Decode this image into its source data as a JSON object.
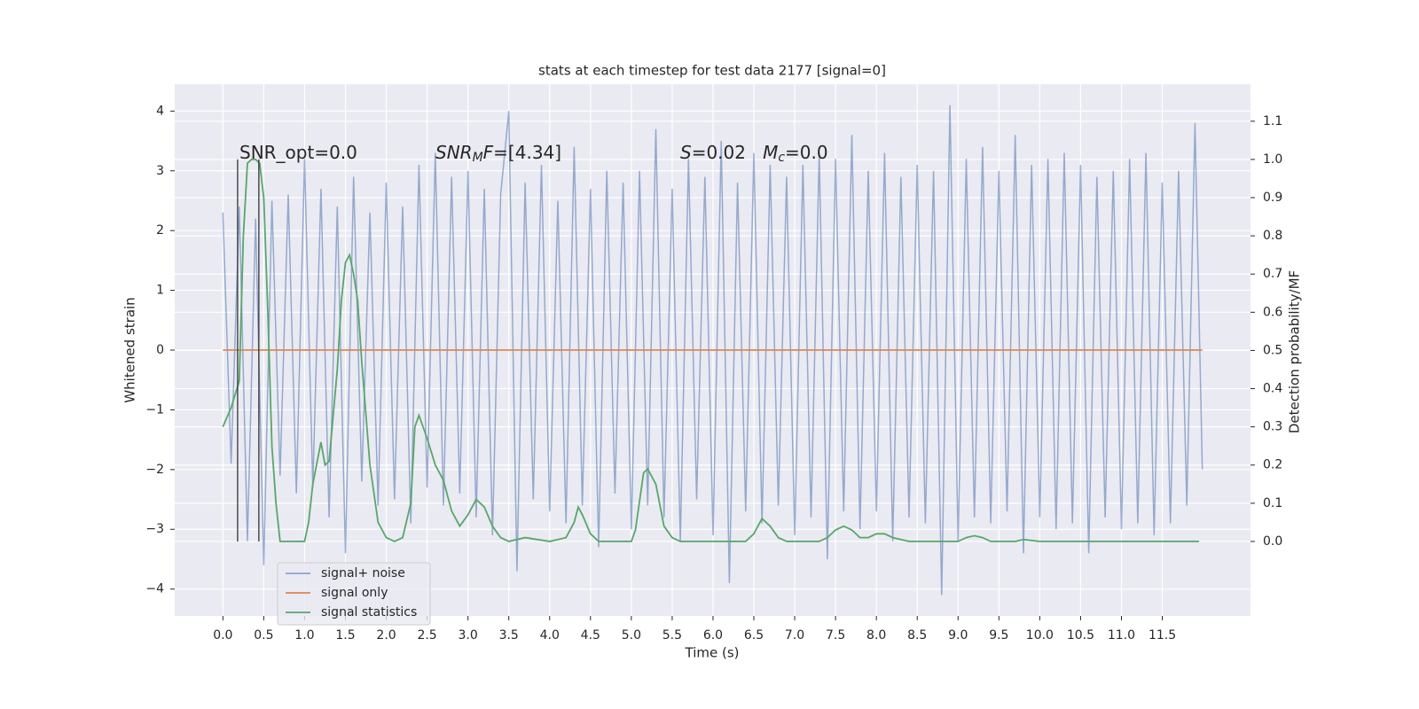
{
  "chart_data": {
    "type": "line",
    "title": "stats at each timestep for test data 2177 [signal=0]",
    "xlabel": "Time (s)",
    "ylabel": "Whitened strain",
    "y2label": "Detection probability/MF",
    "grid": true,
    "legend": "lower left",
    "xlim": [
      -0.59,
      12.58
    ],
    "ylim": [
      -4.45,
      4.45
    ],
    "y2lim": [
      -0.195,
      1.197
    ],
    "xticks": [
      {
        "value": 0,
        "label": "0.0"
      },
      0.5,
      {
        "value": 1,
        "label": "1.0"
      },
      1.5,
      {
        "value": 2,
        "label": "2.0"
      },
      2.5,
      {
        "value": 3,
        "label": "3.0"
      },
      3.5,
      {
        "value": 4,
        "label": "4.0"
      },
      4.5,
      {
        "value": 5,
        "label": "5.0"
      },
      5.5,
      {
        "value": 6,
        "label": "6.0"
      },
      6.5,
      {
        "value": 7,
        "label": "7.0"
      },
      7.5,
      {
        "value": 8,
        "label": "8.0"
      },
      8.5,
      {
        "value": 9,
        "label": "9.0"
      },
      9.5,
      {
        "value": 10,
        "label": "10.0"
      },
      10.5,
      {
        "value": 11,
        "label": "11.0"
      },
      11.5
    ],
    "yticks": [
      {
        "value": -4,
        "label": "−4"
      },
      {
        "value": -3,
        "label": "−3"
      },
      {
        "value": -2,
        "label": "−2"
      },
      {
        "value": -1,
        "label": "−1"
      },
      0,
      1,
      2,
      3,
      4
    ],
    "y2ticks": [
      {
        "value": 0,
        "label": "0.0"
      },
      0.1,
      0.2,
      0.3,
      0.4,
      0.5,
      0.6,
      0.7,
      0.8,
      0.9,
      {
        "value": 1,
        "label": "1.0"
      },
      1.1
    ],
    "annotations": [
      [
        {
          "t": "SNR_opt=0.0"
        }
      ],
      [
        {
          "t": "SNR",
          "i": true
        },
        {
          "t": "M",
          "i": true,
          "sub": true
        },
        {
          "t": "F",
          "i": true
        },
        {
          "t": "=[4.34]"
        }
      ],
      [
        {
          "t": "S",
          "i": true
        },
        {
          "t": "=0.02   "
        },
        {
          "t": "M",
          "i": true
        },
        {
          "t": "c",
          "i": true,
          "sub": true
        },
        {
          "t": "=0.0"
        }
      ]
    ],
    "vlines": {
      "x": [
        0.18,
        0.44
      ],
      "y2": [
        0,
        1
      ],
      "color": "#333333"
    },
    "series": [
      {
        "name": "signal+ noise",
        "color": "#4c72b0",
        "x": [
          0,
          0.1,
          0.2,
          0.3,
          0.4,
          0.5,
          0.6,
          0.7,
          0.8,
          0.9,
          1,
          1.1,
          1.2,
          1.3,
          1.4,
          1.5,
          1.6,
          1.7,
          1.8,
          1.9,
          2,
          2.1,
          2.2,
          2.3,
          2.4,
          2.5,
          2.6,
          2.7,
          2.8,
          2.9,
          3,
          3.1,
          3.2,
          3.3,
          3.4,
          3.5,
          3.6,
          3.7,
          3.8,
          3.9,
          4,
          4.1,
          4.2,
          4.3,
          4.4,
          4.5,
          4.6,
          4.7,
          4.8,
          4.9,
          5,
          5.1,
          5.2,
          5.3,
          5.4,
          5.5,
          5.6,
          5.7,
          5.8,
          5.9,
          6,
          6.1,
          6.2,
          6.3,
          6.4,
          6.5,
          6.6,
          6.7,
          6.8,
          6.9,
          7,
          7.1,
          7.2,
          7.3,
          7.4,
          7.5,
          7.6,
          7.7,
          7.8,
          7.9,
          8,
          8.1,
          8.2,
          8.3,
          8.4,
          8.5,
          8.6,
          8.7,
          8.8,
          8.9,
          9,
          9.1,
          9.2,
          9.3,
          9.4,
          9.5,
          9.6,
          9.7,
          9.8,
          9.9,
          10,
          10.1,
          10.2,
          10.3,
          10.4,
          10.5,
          10.6,
          10.7,
          10.8,
          10.9,
          11,
          11.1,
          11.2,
          11.3,
          11.4,
          11.5,
          11.6,
          11.7,
          11.8,
          11.9,
          11.99
        ],
        "values": [
          2.3,
          -1.9,
          2.4,
          -3.2,
          2.2,
          -3.6,
          2.5,
          -2.1,
          2.6,
          -2.4,
          3.2,
          -2.3,
          2.7,
          -2.8,
          2.4,
          -3.4,
          2.9,
          -2.2,
          2.3,
          -2.6,
          2.8,
          -2.5,
          2.4,
          -2.9,
          3.1,
          -2.3,
          3.3,
          -2.6,
          2.9,
          -2.4,
          3.0,
          -2.8,
          2.7,
          -3.1,
          2.6,
          4.0,
          -3.7,
          2.8,
          -2.5,
          3.1,
          -2.7,
          2.5,
          -2.9,
          3.4,
          -2.6,
          2.7,
          -3.3,
          3.0,
          -2.4,
          2.8,
          -3.0,
          3.0,
          -2.6,
          3.7,
          -2.8,
          2.7,
          -3.2,
          3.2,
          -2.5,
          2.9,
          -3.1,
          3.5,
          -3.9,
          2.8,
          -2.7,
          3.3,
          -2.9,
          3.1,
          -2.6,
          2.9,
          -3.1,
          3.1,
          -2.8,
          3.3,
          -3.5,
          3.2,
          -2.7,
          3.6,
          -3.0,
          3.0,
          -2.7,
          3.3,
          -3.2,
          2.9,
          -2.8,
          3.1,
          -2.9,
          3.0,
          -4.1,
          4.1,
          -3.2,
          3.2,
          -2.8,
          3.4,
          -2.9,
          3.0,
          -2.7,
          3.6,
          -3.4,
          3.1,
          -2.8,
          3.2,
          -3.0,
          3.3,
          -2.9,
          3.1,
          -3.4,
          2.9,
          -2.8,
          3.0,
          -3.0,
          3.2,
          -2.9,
          3.3,
          -3.1,
          2.8,
          -2.9,
          3.0,
          -2.6,
          3.8,
          -2.0
        ]
      },
      {
        "name": "signal only",
        "color": "#dd8452",
        "x": [
          0,
          11.99
        ],
        "values": [
          0,
          0
        ]
      },
      {
        "name": "signal statistics",
        "color": "#55a868",
        "axis": "y2",
        "x": [
          0,
          0.1,
          0.2,
          0.25,
          0.3,
          0.35,
          0.4,
          0.45,
          0.5,
          0.55,
          0.6,
          0.65,
          0.7,
          0.8,
          0.9,
          1.0,
          1.05,
          1.1,
          1.2,
          1.25,
          1.3,
          1.4,
          1.45,
          1.5,
          1.55,
          1.6,
          1.65,
          1.7,
          1.8,
          1.9,
          2.0,
          2.1,
          2.2,
          2.3,
          2.35,
          2.4,
          2.5,
          2.6,
          2.7,
          2.8,
          2.9,
          3.0,
          3.1,
          3.2,
          3.3,
          3.4,
          3.5,
          3.7,
          4.0,
          4.2,
          4.3,
          4.35,
          4.4,
          4.5,
          4.6,
          5.0,
          5.05,
          5.15,
          5.2,
          5.3,
          5.4,
          5.5,
          5.6,
          6.0,
          6.4,
          6.5,
          6.6,
          6.7,
          6.8,
          6.9,
          7.3,
          7.4,
          7.5,
          7.6,
          7.7,
          7.8,
          7.9,
          8.0,
          8.1,
          8.2,
          8.4,
          9.0,
          9.1,
          9.2,
          9.3,
          9.4,
          9.7,
          9.8,
          10.0,
          11.0,
          11.5,
          11.95
        ],
        "values": [
          0.3,
          0.35,
          0.42,
          0.8,
          0.99,
          1.0,
          1.0,
          0.99,
          0.9,
          0.6,
          0.25,
          0.1,
          0.0,
          0.0,
          0.0,
          0.0,
          0.05,
          0.15,
          0.26,
          0.2,
          0.21,
          0.45,
          0.63,
          0.73,
          0.75,
          0.7,
          0.63,
          0.47,
          0.2,
          0.05,
          0.01,
          0.0,
          0.01,
          0.1,
          0.3,
          0.33,
          0.27,
          0.2,
          0.16,
          0.08,
          0.04,
          0.07,
          0.11,
          0.09,
          0.04,
          0.01,
          0.0,
          0.01,
          0.0,
          0.01,
          0.05,
          0.09,
          0.07,
          0.02,
          0.0,
          0.0,
          0.03,
          0.18,
          0.19,
          0.15,
          0.04,
          0.01,
          0.0,
          0.0,
          0.0,
          0.02,
          0.06,
          0.04,
          0.01,
          0.0,
          0.0,
          0.01,
          0.03,
          0.04,
          0.03,
          0.01,
          0.01,
          0.02,
          0.02,
          0.01,
          0.0,
          0.0,
          0.01,
          0.015,
          0.01,
          0.0,
          0.0,
          0.005,
          0.0,
          0.0,
          0.0,
          0.0
        ]
      }
    ]
  }
}
